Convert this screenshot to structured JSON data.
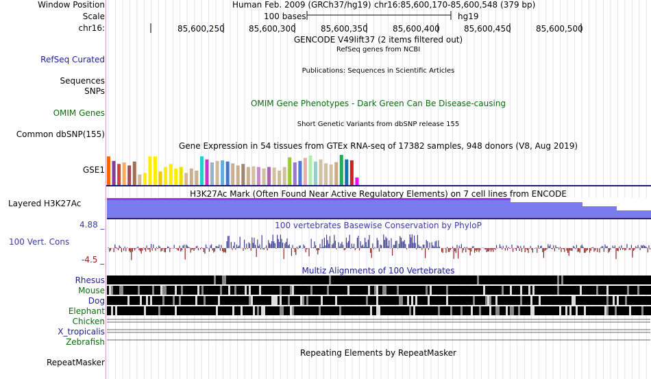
{
  "header": {
    "window_position_label": "Window Position",
    "scale_label": "Scale",
    "chrom_label": "chr16:",
    "assembly_text": "Human Feb. 2009 (GRCh37/hg19)",
    "position_text": "chr16:85,600,170-85,600,548 (379 bp)",
    "scale_text": "100 bases",
    "scale_db": "hg19",
    "ruler_ticks": [
      "85,600,250",
      "85,600,300",
      "85,600,350",
      "85,600,400",
      "85,600,450",
      "85,600,500"
    ]
  },
  "tracks": {
    "gencode_title": "GENCODE V49lift37 (2 items filtered out)",
    "refseq_title": "RefSeq genes from NCBI",
    "refseq_label": "RefSeq Curated",
    "publications_title": "Publications: Sequences in Scientific Articles",
    "sequences_label": "Sequences",
    "snps_label": "SNPs",
    "omim_label": "OMIM Genes",
    "omim_title": "OMIM Gene Phenotypes - Dark Green Can Be Disease-causing",
    "dbsnp_label": "Common dbSNP(155)",
    "dbsnp_title": "Short Genetic Variants from dbSNP release 155",
    "gtex_title": "Gene Expression in 54 tissues from GTEx RNA-seq of 17382 samples, 948 donors (V8, Aug 2019)",
    "gtex_label": "GSE1",
    "h3k27ac_title": "H3K27Ac Mark (Often Found Near Active Regulatory Elements) on 7 cell lines from ENCODE",
    "h3k27ac_label": "Layered H3K27Ac",
    "cons_title": "100 vertebrates Basewise Conservation by PhyloP",
    "cons_label": "100 Vert. Cons",
    "cons_max": "4.88 _",
    "cons_min": "-4.5 _",
    "multiz_title": "Multiz Alignments of 100 Vertebrates",
    "species": [
      "Rhesus",
      "Mouse",
      "Dog",
      "Elephant",
      "Chicken",
      "X_tropicalis",
      "Zebrafish"
    ],
    "repeat_label": "RepeatMasker",
    "repeat_title": "Repeating Elements by RepeatMasker"
  },
  "colors": {
    "blue_label": "#1c1c8a",
    "green_label": "#0b6b0b",
    "h3k27ac_fill": "#7b7bf0",
    "cons_pos": "#3b3b90",
    "cons_neg": "#8b2020"
  },
  "gtex_colors": [
    "#ff6600",
    "#7f3f98",
    "#cc4444",
    "#ffaa55",
    "#a05050",
    "#a07050",
    "#d4b896",
    "#ffee00",
    "#ffee00",
    "#ffee00",
    "#eecc00",
    "#ffee00",
    "#ffee00",
    "#ffee00",
    "#eedd00",
    "#d4b896",
    "#c8b090",
    "#c8b090",
    "#22cccc",
    "#cc33cc",
    "#9ab0d0",
    "#ccbb99",
    "#66aadd",
    "#4477cc",
    "#c8b090",
    "#c8b090",
    "#a08870",
    "#c8b090",
    "#d0c0a0",
    "#cc88cc",
    "#d0c0a0",
    "#aa66aa",
    "#d0c0a0",
    "#ccbb99",
    "#d0c0a0",
    "#99cc33",
    "#9977cc",
    "#5577dd",
    "#eeaaaa",
    "#aaeeaa",
    "#99cccc",
    "#d0c0a0",
    "#d0c0a0",
    "#d0c0a0",
    "#ccaa88",
    "#22aa55",
    "#1177aa",
    "#cc2222",
    "#ff00ff"
  ],
  "gtex_values": [
    0.95,
    0.8,
    0.7,
    0.75,
    0.65,
    0.78,
    0.35,
    0.4,
    0.95,
    0.95,
    0.45,
    0.6,
    0.7,
    0.55,
    0.6,
    0.4,
    0.55,
    0.48,
    0.95,
    0.85,
    0.75,
    0.8,
    0.82,
    0.78,
    0.72,
    0.65,
    0.7,
    0.6,
    0.62,
    0.6,
    0.55,
    0.6,
    0.58,
    0.48,
    0.6,
    0.92,
    0.75,
    0.8,
    0.9,
    0.98,
    0.78,
    0.85,
    0.72,
    0.68,
    0.76,
    1.0,
    0.85,
    0.82,
    0.25
  ]
}
